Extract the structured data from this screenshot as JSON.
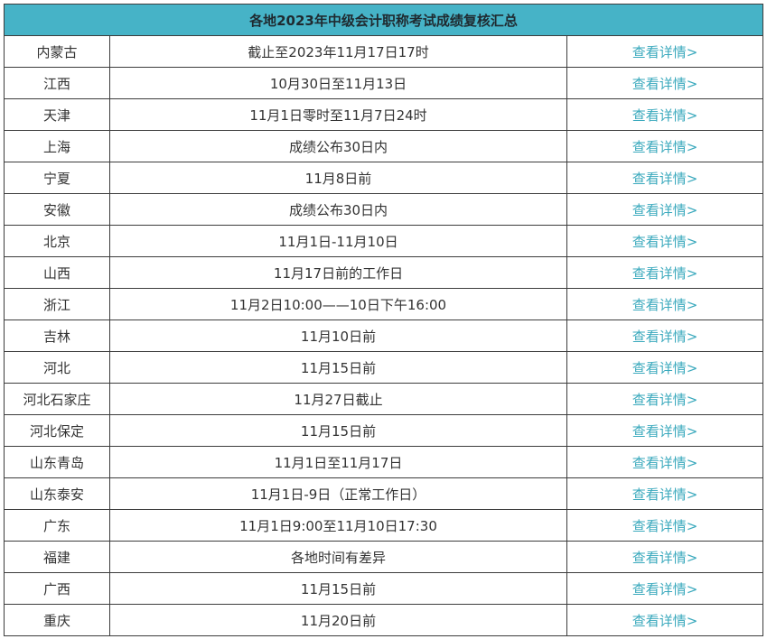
{
  "table": {
    "title": "各地2023年中级会计职称考试成绩复核汇总",
    "link_text": "查看详情>",
    "rows": [
      {
        "region": "内蒙古",
        "time": "截止至2023年11月17日17时",
        "link": "查看详情>"
      },
      {
        "region": "江西",
        "time": "10月30日至11月13日",
        "link": "查看详情>"
      },
      {
        "region": "天津",
        "time": "11月1日零时至11月7日24时",
        "link": "查看详情>"
      },
      {
        "region": "上海",
        "time": "成绩公布30日内",
        "link": "查看详情>"
      },
      {
        "region": "宁夏",
        "time": "11月8日前",
        "link": "查看详情>"
      },
      {
        "region": "安徽",
        "time": "成绩公布30日内",
        "link": "查看详情>"
      },
      {
        "region": "北京",
        "time": "11月1日-11月10日",
        "link": "查看详情>"
      },
      {
        "region": "山西",
        "time": "11月17日前的工作日",
        "link": "查看详情>"
      },
      {
        "region": "浙江",
        "time": "11月2日10:00——10日下午16:00",
        "link": "查看详情>"
      },
      {
        "region": "吉林",
        "time": "11月10日前",
        "link": "查看详情>"
      },
      {
        "region": "河北",
        "time": "11月15日前",
        "link": "查看详情>"
      },
      {
        "region": "河北石家庄",
        "time": "11月27日截止",
        "link": "查看详情>"
      },
      {
        "region": "河北保定",
        "time": "11月15日前",
        "link": "查看详情>"
      },
      {
        "region": "山东青岛",
        "time": "11月1日至11月17日",
        "link": "查看详情>"
      },
      {
        "region": "山东泰安",
        "time": "11月1日-9日（正常工作日）",
        "link": "查看详情>"
      },
      {
        "region": "广东",
        "time": "11月1日9:00至11月10日17:30",
        "link": "查看详情>"
      },
      {
        "region": "福建",
        "time": "各地时间有差异",
        "link": "查看详情>"
      },
      {
        "region": "广西",
        "time": "11月15日前",
        "link": "查看详情>"
      },
      {
        "region": "重庆",
        "time": "11月20日前",
        "link": "查看详情>"
      }
    ]
  },
  "colors": {
    "header_bg": "#46b3c7",
    "link": "#3aa9bd",
    "border": "#3c3c3c"
  }
}
